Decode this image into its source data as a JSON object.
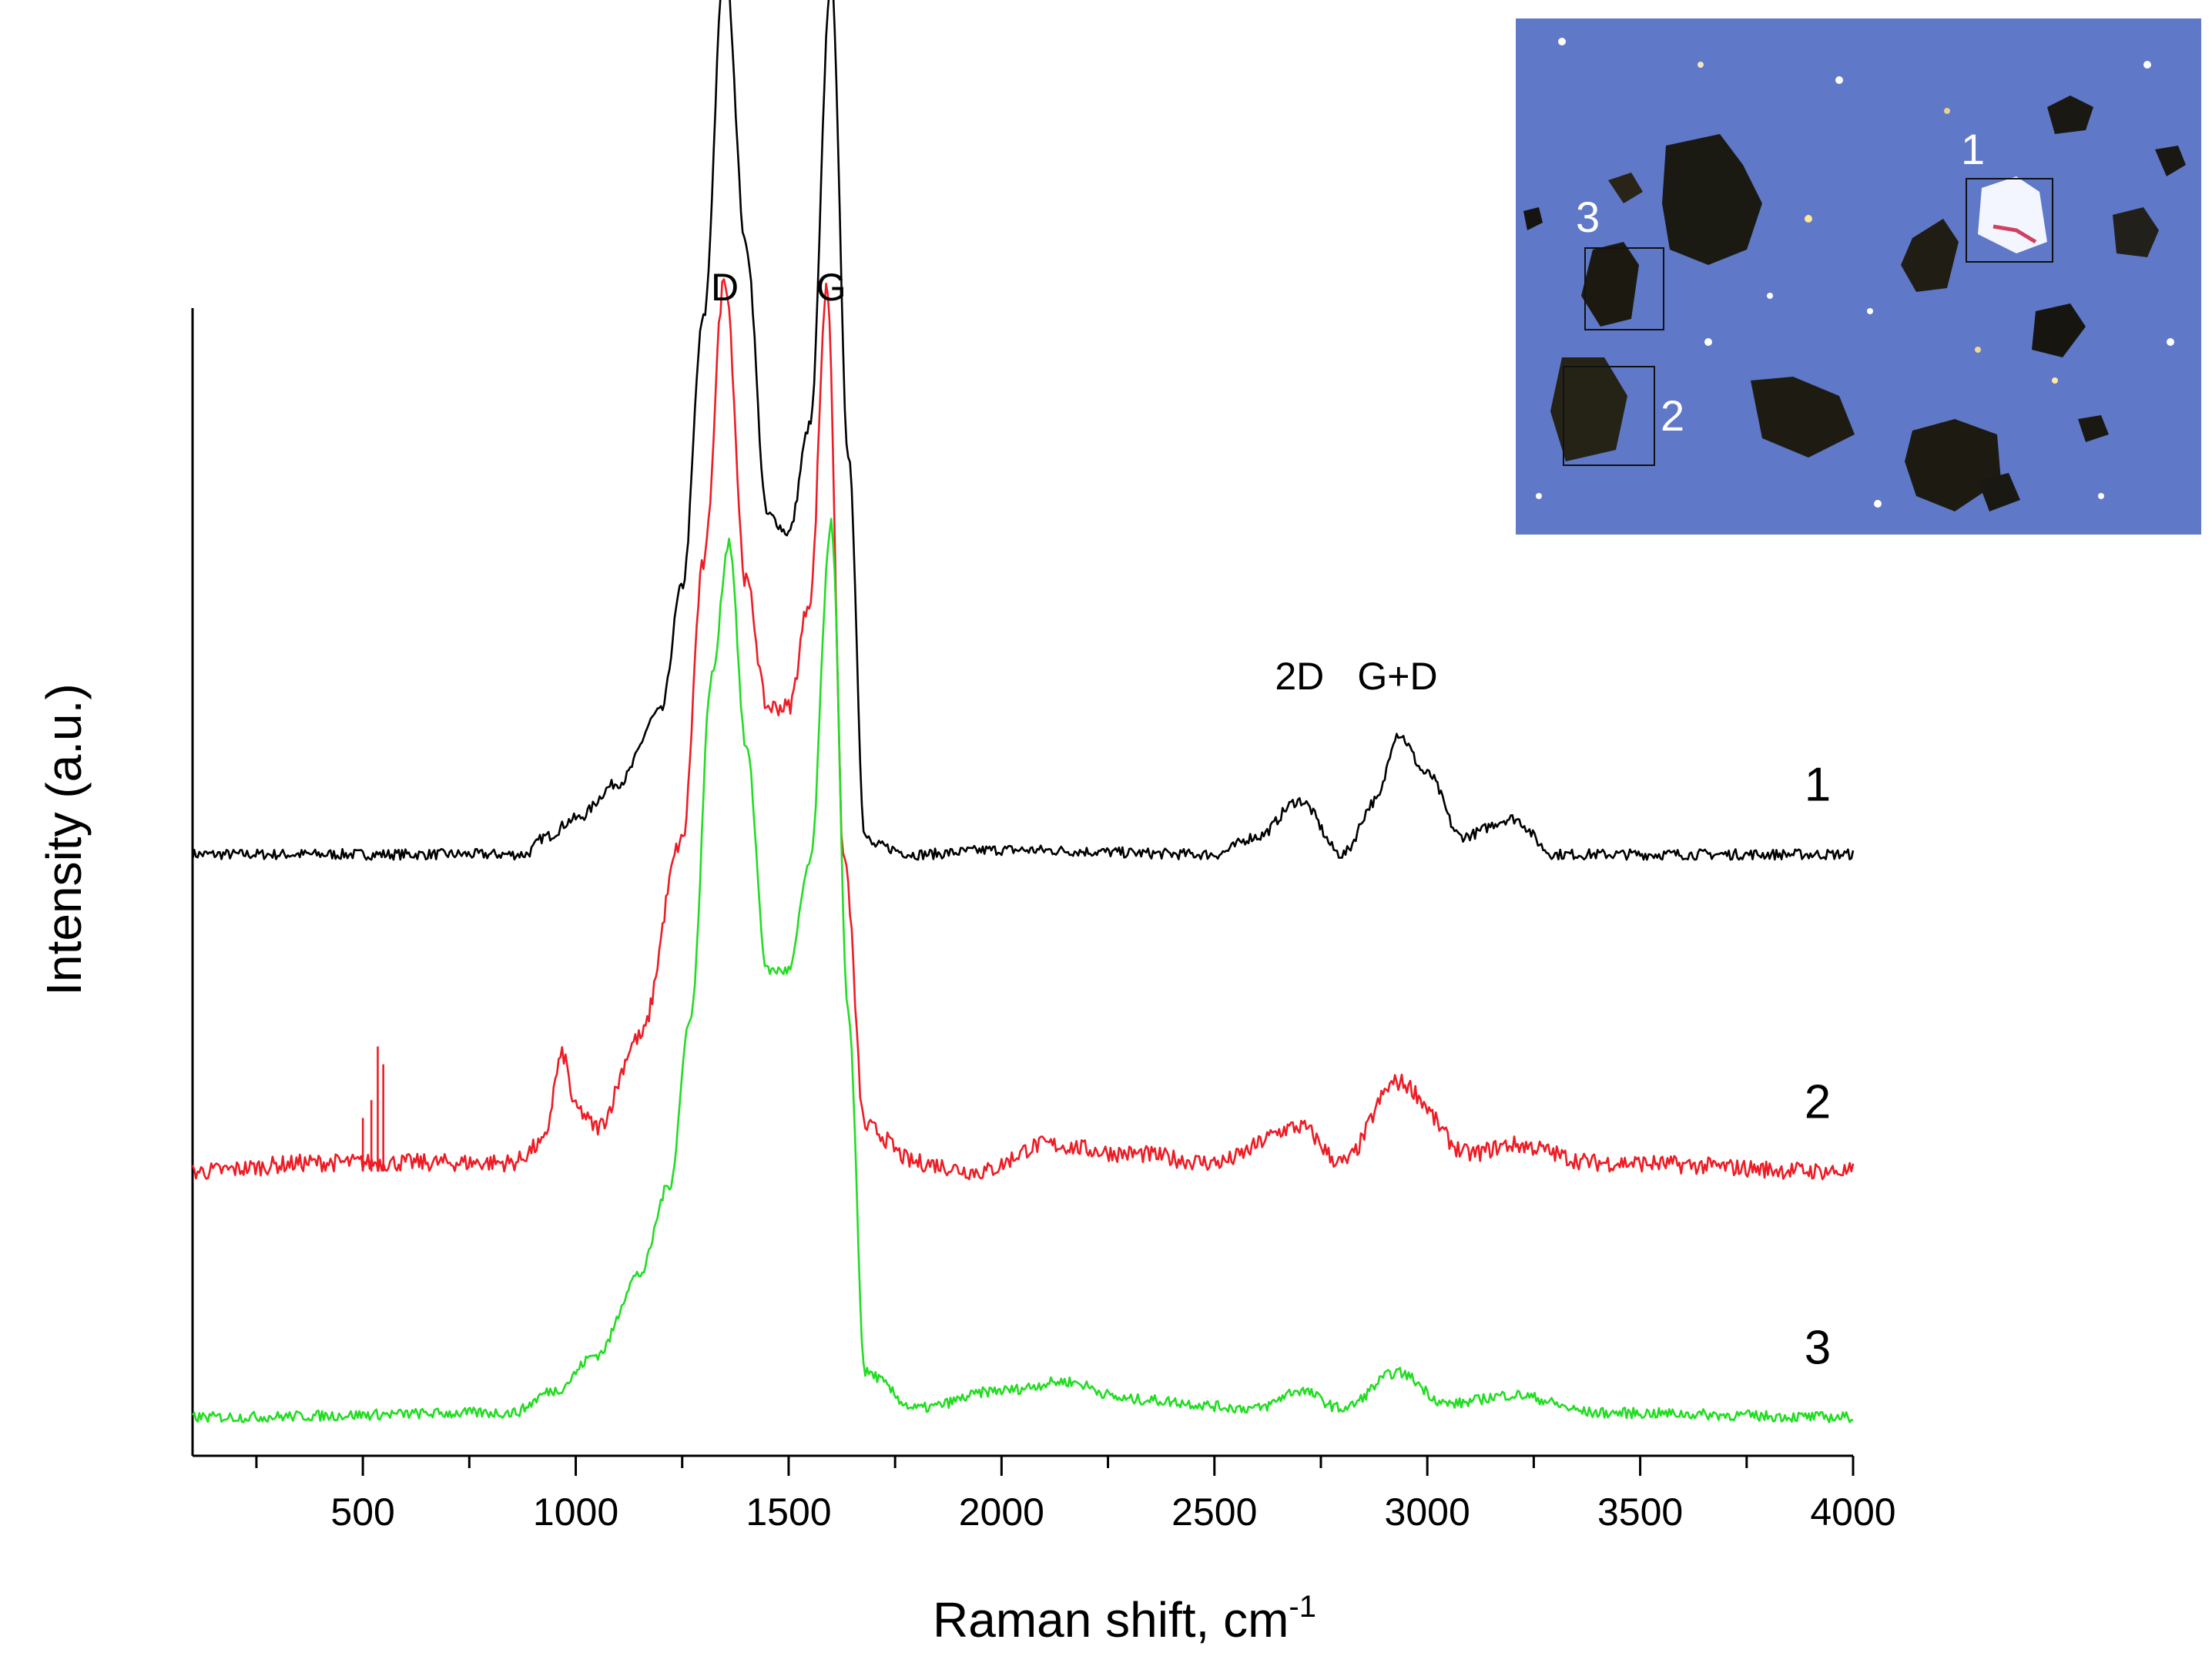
{
  "chart_data": {
    "type": "line",
    "title": "",
    "xlabel": "Raman shift, cm",
    "xlabel_sup": "-1",
    "ylabel": "Intensity (a.u.)",
    "xlim": [
      100,
      4000
    ],
    "xticks": [
      500,
      1000,
      1500,
      2000,
      2500,
      3000,
      3500,
      4000
    ],
    "yticks_shown": false,
    "grid": false,
    "legend": "none",
    "peak_labels": [
      {
        "text": "D",
        "x": 1350
      },
      {
        "text": "G",
        "x": 1600
      },
      {
        "text": "2D",
        "x": 2700
      },
      {
        "text": "G+D",
        "x": 2930
      }
    ],
    "series": [
      {
        "label": "1",
        "color": "#000000",
        "offset": 0.63,
        "baseline_noise": 0.006,
        "background": 0,
        "shape": [
          [
            100,
            0
          ],
          [
            880,
            0
          ],
          [
            930,
            0.02
          ],
          [
            1000,
            0.04
          ],
          [
            1100,
            0.08
          ],
          [
            1200,
            0.16
          ],
          [
            1250,
            0.3
          ],
          [
            1300,
            0.6
          ],
          [
            1350,
            1.0
          ],
          [
            1400,
            0.68
          ],
          [
            1450,
            0.38
          ],
          [
            1500,
            0.36
          ],
          [
            1550,
            0.48
          ],
          [
            1600,
            0.98
          ],
          [
            1640,
            0.45
          ],
          [
            1680,
            0.02
          ],
          [
            1700,
            0.01
          ],
          [
            1800,
            0.0
          ],
          [
            2000,
            0.005
          ],
          [
            2500,
            0.0
          ],
          [
            2600,
            0.02
          ],
          [
            2700,
            0.06
          ],
          [
            2800,
            0.0
          ],
          [
            2880,
            0.06
          ],
          [
            2930,
            0.135
          ],
          [
            3000,
            0.09
          ],
          [
            3080,
            0.02
          ],
          [
            3200,
            0.04
          ],
          [
            3300,
            0.0
          ],
          [
            4000,
            0.0
          ]
        ]
      },
      {
        "label": "2",
        "color": "#ee1c25",
        "offset": 0.275,
        "baseline_noise": 0.01,
        "background": 0,
        "spikes": [
          [
            500,
            0.06
          ],
          [
            520,
            0.08
          ],
          [
            535,
            0.14
          ],
          [
            548,
            0.12
          ]
        ],
        "shape": [
          [
            100,
            0
          ],
          [
            400,
            0.01
          ],
          [
            850,
            0.01
          ],
          [
            920,
            0.03
          ],
          [
            970,
            0.13
          ],
          [
            1000,
            0.07
          ],
          [
            1050,
            0.05
          ],
          [
            1150,
            0.15
          ],
          [
            1250,
            0.37
          ],
          [
            1300,
            0.68
          ],
          [
            1350,
            1.0
          ],
          [
            1400,
            0.66
          ],
          [
            1450,
            0.52
          ],
          [
            1500,
            0.52
          ],
          [
            1550,
            0.64
          ],
          [
            1590,
            0.99
          ],
          [
            1630,
            0.35
          ],
          [
            1680,
            0.05
          ],
          [
            1800,
            0.01
          ],
          [
            1950,
            0.0
          ],
          [
            2100,
            0.03
          ],
          [
            2300,
            0.02
          ],
          [
            2500,
            0.01
          ],
          [
            2700,
            0.05
          ],
          [
            2800,
            0.01
          ],
          [
            2930,
            0.1
          ],
          [
            3100,
            0.02
          ],
          [
            3200,
            0.03
          ],
          [
            3400,
            0.01
          ],
          [
            4000,
            0.0
          ]
        ]
      },
      {
        "label": "3",
        "color": "#22dd22",
        "offset": 0.0,
        "baseline_noise": 0.006,
        "background": 0,
        "shape": [
          [
            100,
            0
          ],
          [
            850,
            0.005
          ],
          [
            950,
            0.03
          ],
          [
            1050,
            0.07
          ],
          [
            1150,
            0.16
          ],
          [
            1220,
            0.26
          ],
          [
            1270,
            0.45
          ],
          [
            1320,
            0.83
          ],
          [
            1360,
            0.98
          ],
          [
            1400,
            0.75
          ],
          [
            1450,
            0.5
          ],
          [
            1500,
            0.5
          ],
          [
            1550,
            0.62
          ],
          [
            1600,
            1.0
          ],
          [
            1640,
            0.45
          ],
          [
            1680,
            0.05
          ],
          [
            1800,
            0.01
          ],
          [
            2000,
            0.03
          ],
          [
            2150,
            0.04
          ],
          [
            2300,
            0.02
          ],
          [
            2600,
            0.01
          ],
          [
            2700,
            0.03
          ],
          [
            2800,
            0.01
          ],
          [
            2930,
            0.05
          ],
          [
            3050,
            0.015
          ],
          [
            3200,
            0.025
          ],
          [
            3400,
            0.005
          ],
          [
            4000,
            0.0
          ]
        ]
      }
    ]
  },
  "inset": {
    "background_color": "#5f78c8",
    "box_labels": [
      "1",
      "2",
      "3"
    ]
  }
}
